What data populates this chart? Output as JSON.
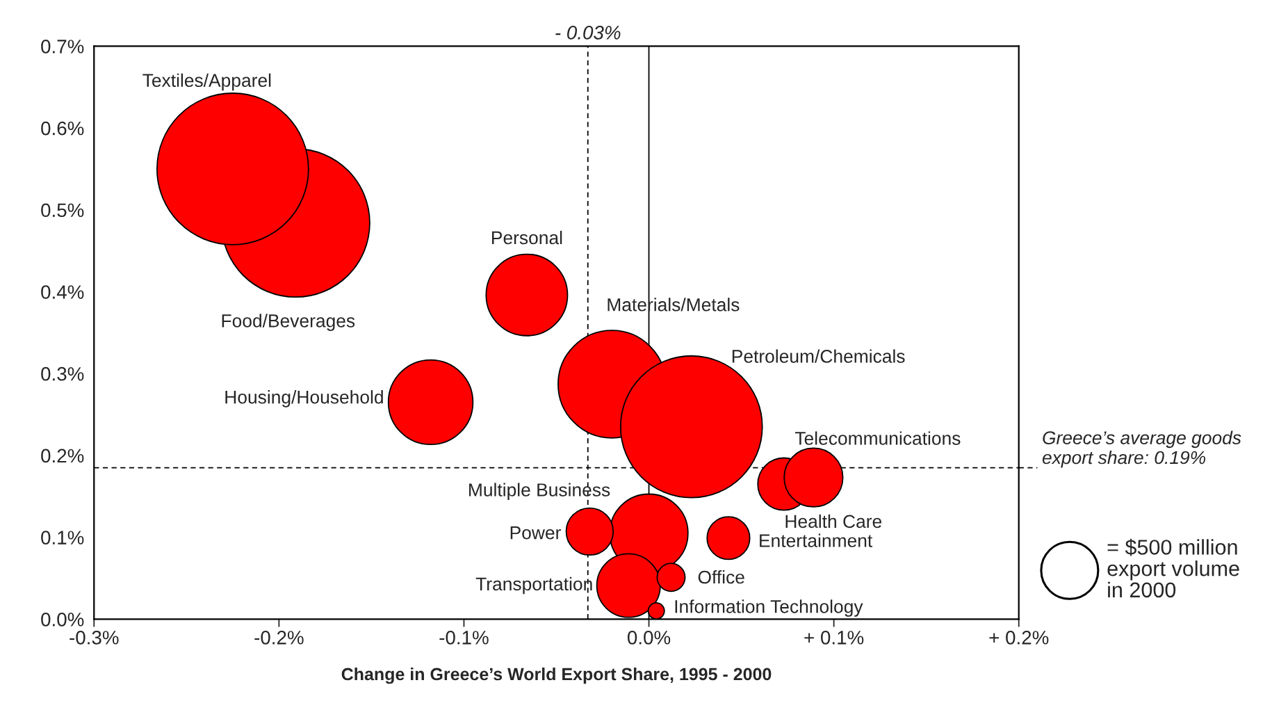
{
  "chart_data": {
    "type": "bubble",
    "xlabel": "Change in Greece’s World Export Share, 1995 - 2000",
    "xlim": [
      -0.3,
      0.2
    ],
    "ylim": [
      0,
      0.7
    ],
    "xticks": [
      {
        "value": -0.3,
        "label": "-0.3%"
      },
      {
        "value": -0.2,
        "label": "-0.2%"
      },
      {
        "value": -0.1,
        "label": "-0.1%"
      },
      {
        "value": 0.0,
        "label": "0.0%"
      },
      {
        "value": 0.1,
        "label": "+ 0.1%"
      },
      {
        "value": 0.2,
        "label": "+ 0.2%"
      }
    ],
    "yticks": [
      {
        "value": 0.0,
        "label": "0.0%"
      },
      {
        "value": 0.1,
        "label": "0.1%"
      },
      {
        "value": 0.2,
        "label": "0.2%"
      },
      {
        "value": 0.3,
        "label": "0.3%"
      },
      {
        "value": 0.4,
        "label": "0.4%"
      },
      {
        "value": 0.5,
        "label": "0.5%"
      },
      {
        "value": 0.6,
        "label": "0.6%"
      },
      {
        "value": 0.7,
        "label": "0.7%"
      }
    ],
    "grid": false,
    "legend": false,
    "marker": "circle",
    "size_legend": [
      {
        "value": 500,
        "label": "= $500 million\nexport volume\nin 2000"
      }
    ],
    "series": [
      {
        "name": "Food/Beverages",
        "color": "#ff0000",
        "x": [
          -0.191
        ],
        "values": [
          0.484
        ],
        "sizes": [
          3380
        ]
      },
      {
        "name": "Textiles/Apparel",
        "color": "#ff0000",
        "x": [
          -0.225
        ],
        "values": [
          0.55
        ],
        "sizes": [
          3530
        ]
      },
      {
        "name": "Personal",
        "color": "#ff0000",
        "x": [
          -0.066
        ],
        "values": [
          0.396
        ],
        "sizes": [
          1020
        ]
      },
      {
        "name": "Housing/Household",
        "color": "#ff0000",
        "x": [
          -0.118
        ],
        "values": [
          0.265
        ],
        "sizes": [
          1100
        ]
      },
      {
        "name": "Materials/Metals",
        "color": "#ff0000",
        "x": [
          -0.02
        ],
        "values": [
          0.287
        ],
        "sizes": [
          1780
        ]
      },
      {
        "name": "Petroleum/Chemicals",
        "color": "#ff0000",
        "x": [
          0.023
        ],
        "values": [
          0.235
        ],
        "sizes": [
          3090
        ]
      },
      {
        "name": "Health Care",
        "color": "#ff0000",
        "x": [
          0.073
        ],
        "values": [
          0.165
        ],
        "sizes": [
          420
        ]
      },
      {
        "name": "Telecommunications",
        "color": "#ff0000",
        "x": [
          0.089
        ],
        "values": [
          0.173
        ],
        "sizes": [
          530
        ]
      },
      {
        "name": "Multiple Business",
        "color": "#ff0000",
        "x": [
          0.0
        ],
        "values": [
          0.105
        ],
        "sizes": [
          940
        ]
      },
      {
        "name": "Transportation",
        "color": "#ff0000",
        "x": [
          -0.011
        ],
        "values": [
          0.041
        ],
        "sizes": [
          620
        ]
      },
      {
        "name": "Power",
        "color": "#ff0000",
        "x": [
          -0.032
        ],
        "values": [
          0.107
        ],
        "sizes": [
          340
        ]
      },
      {
        "name": "Office",
        "color": "#ff0000",
        "x": [
          0.012
        ],
        "values": [
          0.051
        ],
        "sizes": [
          120
        ]
      },
      {
        "name": "Entertainment",
        "color": "#ff0000",
        "x": [
          0.043
        ],
        "values": [
          0.099
        ],
        "sizes": [
          280
        ]
      },
      {
        "name": "Information Technology",
        "color": "#ff0000",
        "x": [
          0.004
        ],
        "values": [
          0.01
        ],
        "sizes": [
          40
        ]
      }
    ],
    "ref_lines": [
      {
        "axis": "x",
        "value": -0.033,
        "label": "- 0.03%",
        "color": "#000000",
        "line_style": "dashed"
      },
      {
        "axis": "y",
        "value": 0.185,
        "label": "Greece’s average goods export share: 0.19%",
        "color": "#000000",
        "line_style": "dashed"
      },
      {
        "axis": "x",
        "value": 0.0,
        "color": "#000000",
        "line_style": "solid"
      }
    ]
  }
}
